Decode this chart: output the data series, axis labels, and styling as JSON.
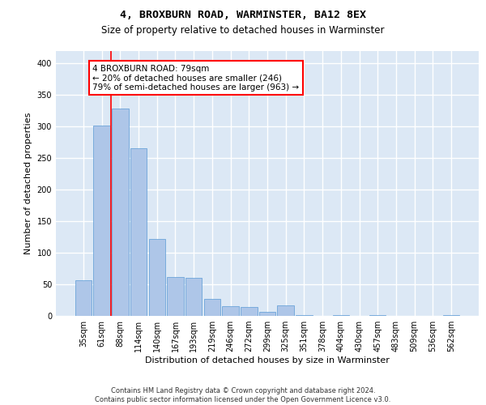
{
  "title": "4, BROXBURN ROAD, WARMINSTER, BA12 8EX",
  "subtitle": "Size of property relative to detached houses in Warminster",
  "xlabel": "Distribution of detached houses by size in Warminster",
  "ylabel": "Number of detached properties",
  "footer_line1": "Contains HM Land Registry data © Crown copyright and database right 2024.",
  "footer_line2": "Contains public sector information licensed under the Open Government Licence v3.0.",
  "bar_color": "#aec6e8",
  "bar_edge_color": "#5b9bd5",
  "background_color": "#dce8f5",
  "grid_color": "#ffffff",
  "categories": [
    "35sqm",
    "61sqm",
    "88sqm",
    "114sqm",
    "140sqm",
    "167sqm",
    "193sqm",
    "219sqm",
    "246sqm",
    "272sqm",
    "299sqm",
    "325sqm",
    "351sqm",
    "378sqm",
    "404sqm",
    "430sqm",
    "457sqm",
    "483sqm",
    "509sqm",
    "536sqm",
    "562sqm"
  ],
  "values": [
    57,
    302,
    328,
    265,
    122,
    62,
    60,
    27,
    15,
    14,
    7,
    17,
    1,
    0,
    1,
    0,
    1,
    0,
    0,
    0,
    1
  ],
  "property_label": "4 BROXBURN ROAD: 79sqm",
  "pct_smaller": "20% of detached houses are smaller (246)",
  "pct_larger": "79% of semi-detached houses are larger (963)",
  "vline_x": 1.5,
  "ylim": [
    0,
    420
  ],
  "yticks": [
    0,
    50,
    100,
    150,
    200,
    250,
    300,
    350,
    400
  ],
  "title_fontsize": 9.5,
  "subtitle_fontsize": 8.5,
  "ylabel_fontsize": 8,
  "xlabel_fontsize": 8,
  "tick_fontsize": 7,
  "ann_fontsize": 7.5,
  "footer_fontsize": 6
}
